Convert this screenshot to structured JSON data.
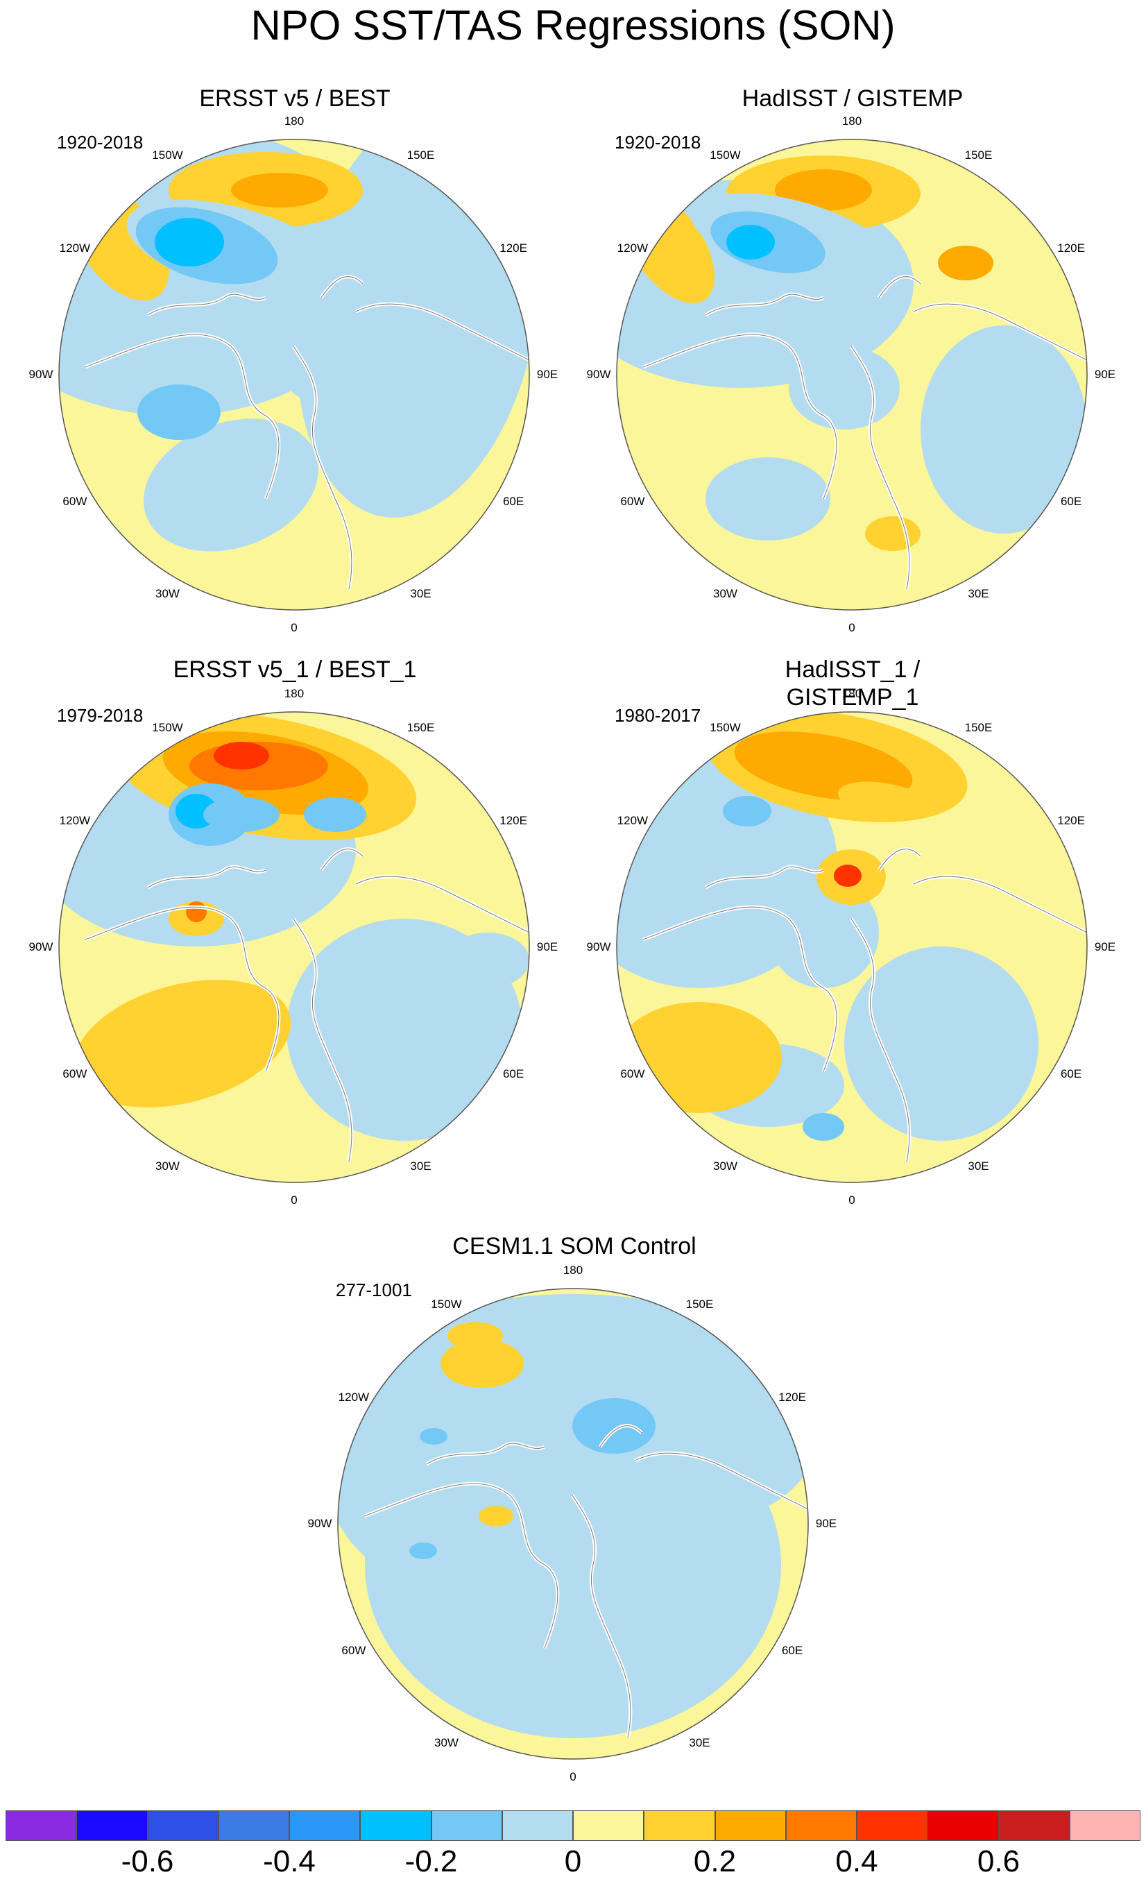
{
  "title": "NPO SST/TAS Regressions (SON)",
  "lon_labels": [
    "180",
    "150E",
    "120E",
    "90E",
    "60E",
    "30E",
    "0",
    "30W",
    "60W",
    "90W",
    "120W",
    "150W"
  ],
  "panels": [
    {
      "title": "ERSST v5 / BEST",
      "period": "1920-2018"
    },
    {
      "title": "HadISST / GISTEMP",
      "period": "1920-2018"
    },
    {
      "title": "ERSST v5_1 / BEST_1",
      "period": "1979-2018"
    },
    {
      "title": "HadISST_1 / GISTEMP_1",
      "period": "1980-2017"
    },
    {
      "title": "CESM1.1 SOM Control",
      "period": "277-1001"
    }
  ],
  "colorbar": {
    "colors": [
      "#8a2be2",
      "#1a0aff",
      "#2e50e6",
      "#3c7ae6",
      "#2a96f5",
      "#00c0ff",
      "#73c8f5",
      "#b4dcf0",
      "#fbf699",
      "#ffd232",
      "#ffaa00",
      "#ff7800",
      "#ff3200",
      "#eb0000",
      "#c81e1e",
      "#ffb4b4"
    ],
    "tick_labels": [
      "-0.6",
      "-0.4",
      "-0.2",
      "0",
      "0.2",
      "0.4",
      "0.6"
    ]
  },
  "chart_data": {
    "type": "heatmap",
    "projection": "north polar stereographic",
    "variable": "SST/TAS regression on NPO index (SON)",
    "levels": [
      -0.7,
      -0.6,
      -0.5,
      -0.4,
      -0.3,
      -0.2,
      -0.1,
      0,
      0.1,
      0.2,
      0.3,
      0.4,
      0.5,
      0.6,
      0.7
    ],
    "label_values": [
      -0.6,
      -0.4,
      -0.2,
      0,
      0.2,
      0.4,
      0.6
    ]
  }
}
